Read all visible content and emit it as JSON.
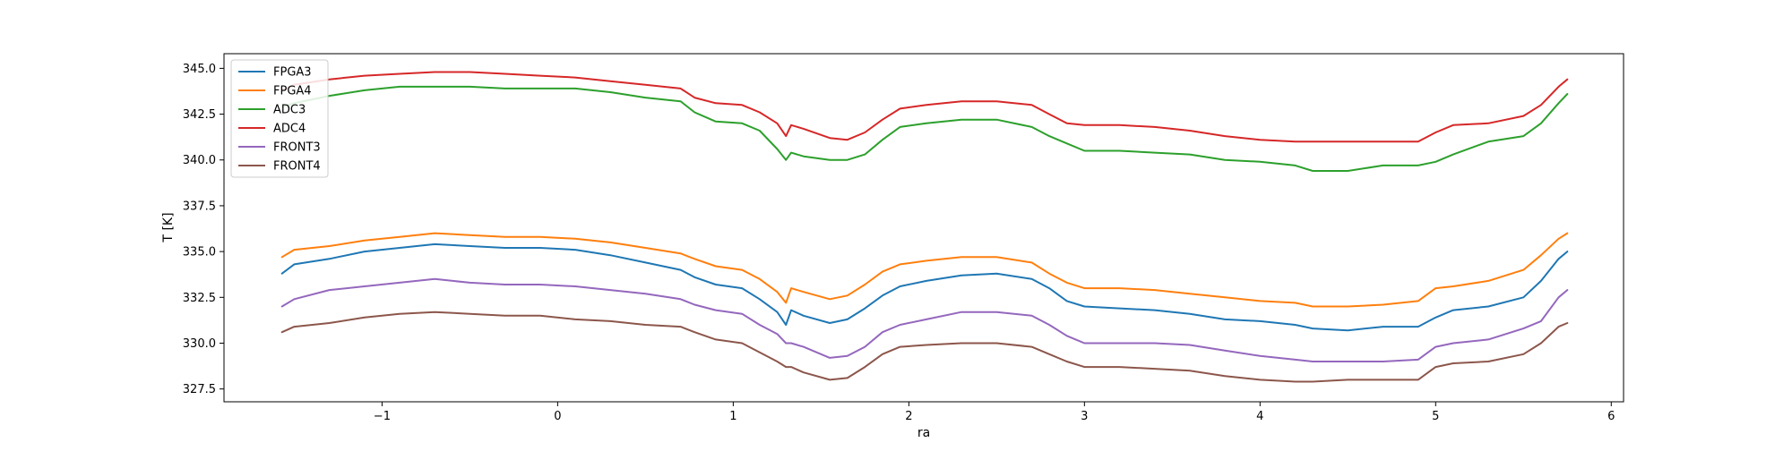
{
  "chart_data": {
    "type": "line",
    "title": "",
    "xlabel": "ra",
    "ylabel": "T [K]",
    "xlim": [
      -1.9,
      6.07
    ],
    "ylim": [
      326.8,
      345.8
    ],
    "xticks": [
      -1,
      0,
      1,
      2,
      3,
      4,
      5,
      6
    ],
    "xtick_labels": [
      "−1",
      "0",
      "1",
      "2",
      "3",
      "4",
      "5",
      "6"
    ],
    "yticks": [
      327.5,
      330.0,
      332.5,
      335.0,
      337.5,
      340.0,
      342.5,
      345.0
    ],
    "ytick_labels": [
      "327.5",
      "330.0",
      "332.5",
      "335.0",
      "337.5",
      "340.0",
      "342.5",
      "345.0"
    ],
    "grid": false,
    "legend_position": "top-left",
    "series": [
      {
        "name": "FPGA3",
        "color": "#1f77b4",
        "points": [
          [
            -1.57,
            333.8
          ],
          [
            -1.5,
            334.3
          ],
          [
            -1.3,
            334.6
          ],
          [
            -1.1,
            335.0
          ],
          [
            -0.9,
            335.2
          ],
          [
            -0.7,
            335.4
          ],
          [
            -0.5,
            335.3
          ],
          [
            -0.3,
            335.2
          ],
          [
            -0.1,
            335.2
          ],
          [
            0.1,
            335.1
          ],
          [
            0.3,
            334.8
          ],
          [
            0.5,
            334.4
          ],
          [
            0.7,
            334.0
          ],
          [
            0.78,
            333.6
          ],
          [
            0.9,
            333.2
          ],
          [
            1.05,
            333.0
          ],
          [
            1.15,
            332.4
          ],
          [
            1.25,
            331.7
          ],
          [
            1.3,
            331.0
          ],
          [
            1.33,
            331.8
          ],
          [
            1.4,
            331.5
          ],
          [
            1.55,
            331.1
          ],
          [
            1.65,
            331.3
          ],
          [
            1.75,
            331.9
          ],
          [
            1.85,
            332.6
          ],
          [
            1.95,
            333.1
          ],
          [
            2.1,
            333.4
          ],
          [
            2.3,
            333.7
          ],
          [
            2.5,
            333.8
          ],
          [
            2.7,
            333.5
          ],
          [
            2.8,
            333.0
          ],
          [
            2.9,
            332.3
          ],
          [
            3.0,
            332.0
          ],
          [
            3.2,
            331.9
          ],
          [
            3.4,
            331.8
          ],
          [
            3.6,
            331.6
          ],
          [
            3.8,
            331.3
          ],
          [
            4.0,
            331.2
          ],
          [
            4.2,
            331.0
          ],
          [
            4.3,
            330.8
          ],
          [
            4.5,
            330.7
          ],
          [
            4.7,
            330.9
          ],
          [
            4.9,
            330.9
          ],
          [
            5.0,
            331.4
          ],
          [
            5.1,
            331.8
          ],
          [
            5.3,
            332.0
          ],
          [
            5.5,
            332.5
          ],
          [
            5.6,
            333.4
          ],
          [
            5.7,
            334.6
          ],
          [
            5.75,
            335.0
          ]
        ]
      },
      {
        "name": "FPGA4",
        "color": "#ff7f0e",
        "points": [
          [
            -1.57,
            334.7
          ],
          [
            -1.5,
            335.1
          ],
          [
            -1.3,
            335.3
          ],
          [
            -1.1,
            335.6
          ],
          [
            -0.9,
            335.8
          ],
          [
            -0.7,
            336.0
          ],
          [
            -0.5,
            335.9
          ],
          [
            -0.3,
            335.8
          ],
          [
            -0.1,
            335.8
          ],
          [
            0.1,
            335.7
          ],
          [
            0.3,
            335.5
          ],
          [
            0.5,
            335.2
          ],
          [
            0.7,
            334.9
          ],
          [
            0.78,
            334.6
          ],
          [
            0.9,
            334.2
          ],
          [
            1.05,
            334.0
          ],
          [
            1.15,
            333.5
          ],
          [
            1.25,
            332.8
          ],
          [
            1.3,
            332.2
          ],
          [
            1.33,
            333.0
          ],
          [
            1.4,
            332.8
          ],
          [
            1.55,
            332.4
          ],
          [
            1.65,
            332.6
          ],
          [
            1.75,
            333.2
          ],
          [
            1.85,
            333.9
          ],
          [
            1.95,
            334.3
          ],
          [
            2.1,
            334.5
          ],
          [
            2.3,
            334.7
          ],
          [
            2.5,
            334.7
          ],
          [
            2.7,
            334.4
          ],
          [
            2.8,
            333.8
          ],
          [
            2.9,
            333.3
          ],
          [
            3.0,
            333.0
          ],
          [
            3.2,
            333.0
          ],
          [
            3.4,
            332.9
          ],
          [
            3.6,
            332.7
          ],
          [
            3.8,
            332.5
          ],
          [
            4.0,
            332.3
          ],
          [
            4.2,
            332.2
          ],
          [
            4.3,
            332.0
          ],
          [
            4.5,
            332.0
          ],
          [
            4.7,
            332.1
          ],
          [
            4.9,
            332.3
          ],
          [
            5.0,
            333.0
          ],
          [
            5.1,
            333.1
          ],
          [
            5.3,
            333.4
          ],
          [
            5.5,
            334.0
          ],
          [
            5.6,
            334.8
          ],
          [
            5.7,
            335.7
          ],
          [
            5.75,
            336.0
          ]
        ]
      },
      {
        "name": "ADC3",
        "color": "#2ca02c",
        "points": [
          [
            -1.57,
            342.9
          ],
          [
            -1.5,
            343.1
          ],
          [
            -1.3,
            343.5
          ],
          [
            -1.1,
            343.8
          ],
          [
            -0.9,
            344.0
          ],
          [
            -0.7,
            344.0
          ],
          [
            -0.5,
            344.0
          ],
          [
            -0.3,
            343.9
          ],
          [
            -0.1,
            343.9
          ],
          [
            0.1,
            343.9
          ],
          [
            0.3,
            343.7
          ],
          [
            0.5,
            343.4
          ],
          [
            0.7,
            343.2
          ],
          [
            0.78,
            342.6
          ],
          [
            0.9,
            342.1
          ],
          [
            1.05,
            342.0
          ],
          [
            1.15,
            341.6
          ],
          [
            1.25,
            340.6
          ],
          [
            1.3,
            340.0
          ],
          [
            1.33,
            340.4
          ],
          [
            1.4,
            340.2
          ],
          [
            1.55,
            340.0
          ],
          [
            1.65,
            340.0
          ],
          [
            1.75,
            340.3
          ],
          [
            1.85,
            341.1
          ],
          [
            1.95,
            341.8
          ],
          [
            2.1,
            342.0
          ],
          [
            2.3,
            342.2
          ],
          [
            2.5,
            342.2
          ],
          [
            2.7,
            341.8
          ],
          [
            2.8,
            341.3
          ],
          [
            2.9,
            340.9
          ],
          [
            3.0,
            340.5
          ],
          [
            3.2,
            340.5
          ],
          [
            3.4,
            340.4
          ],
          [
            3.6,
            340.3
          ],
          [
            3.8,
            340.0
          ],
          [
            4.0,
            339.9
          ],
          [
            4.2,
            339.7
          ],
          [
            4.3,
            339.4
          ],
          [
            4.5,
            339.4
          ],
          [
            4.7,
            339.7
          ],
          [
            4.9,
            339.7
          ],
          [
            5.0,
            339.9
          ],
          [
            5.1,
            340.3
          ],
          [
            5.3,
            341.0
          ],
          [
            5.5,
            341.3
          ],
          [
            5.6,
            342.0
          ],
          [
            5.7,
            343.1
          ],
          [
            5.75,
            343.6
          ]
        ]
      },
      {
        "name": "ADC4",
        "color": "#d62728",
        "points": [
          [
            -1.57,
            343.8
          ],
          [
            -1.5,
            344.1
          ],
          [
            -1.3,
            344.4
          ],
          [
            -1.1,
            344.6
          ],
          [
            -0.9,
            344.7
          ],
          [
            -0.7,
            344.8
          ],
          [
            -0.5,
            344.8
          ],
          [
            -0.3,
            344.7
          ],
          [
            -0.1,
            344.6
          ],
          [
            0.1,
            344.5
          ],
          [
            0.3,
            344.3
          ],
          [
            0.5,
            344.1
          ],
          [
            0.7,
            343.9
          ],
          [
            0.78,
            343.4
          ],
          [
            0.9,
            343.1
          ],
          [
            1.05,
            343.0
          ],
          [
            1.15,
            342.6
          ],
          [
            1.25,
            342.0
          ],
          [
            1.3,
            341.3
          ],
          [
            1.33,
            341.9
          ],
          [
            1.4,
            341.7
          ],
          [
            1.55,
            341.2
          ],
          [
            1.65,
            341.1
          ],
          [
            1.75,
            341.5
          ],
          [
            1.85,
            342.2
          ],
          [
            1.95,
            342.8
          ],
          [
            2.1,
            343.0
          ],
          [
            2.3,
            343.2
          ],
          [
            2.5,
            343.2
          ],
          [
            2.7,
            343.0
          ],
          [
            2.8,
            342.5
          ],
          [
            2.9,
            342.0
          ],
          [
            3.0,
            341.9
          ],
          [
            3.2,
            341.9
          ],
          [
            3.4,
            341.8
          ],
          [
            3.6,
            341.6
          ],
          [
            3.8,
            341.3
          ],
          [
            4.0,
            341.1
          ],
          [
            4.2,
            341.0
          ],
          [
            4.3,
            341.0
          ],
          [
            4.5,
            341.0
          ],
          [
            4.7,
            341.0
          ],
          [
            4.9,
            341.0
          ],
          [
            5.0,
            341.5
          ],
          [
            5.1,
            341.9
          ],
          [
            5.3,
            342.0
          ],
          [
            5.5,
            342.4
          ],
          [
            5.6,
            343.0
          ],
          [
            5.7,
            344.0
          ],
          [
            5.75,
            344.4
          ]
        ]
      },
      {
        "name": "FRONT3",
        "color": "#9467bd",
        "points": [
          [
            -1.57,
            332.0
          ],
          [
            -1.5,
            332.4
          ],
          [
            -1.3,
            332.9
          ],
          [
            -1.1,
            333.1
          ],
          [
            -0.9,
            333.3
          ],
          [
            -0.7,
            333.5
          ],
          [
            -0.5,
            333.3
          ],
          [
            -0.3,
            333.2
          ],
          [
            -0.1,
            333.2
          ],
          [
            0.1,
            333.1
          ],
          [
            0.3,
            332.9
          ],
          [
            0.5,
            332.7
          ],
          [
            0.7,
            332.4
          ],
          [
            0.78,
            332.1
          ],
          [
            0.9,
            331.8
          ],
          [
            1.05,
            331.6
          ],
          [
            1.15,
            331.0
          ],
          [
            1.25,
            330.5
          ],
          [
            1.3,
            330.0
          ],
          [
            1.33,
            330.0
          ],
          [
            1.4,
            329.8
          ],
          [
            1.55,
            329.2
          ],
          [
            1.65,
            329.3
          ],
          [
            1.75,
            329.8
          ],
          [
            1.85,
            330.6
          ],
          [
            1.95,
            331.0
          ],
          [
            2.1,
            331.3
          ],
          [
            2.3,
            331.7
          ],
          [
            2.5,
            331.7
          ],
          [
            2.7,
            331.5
          ],
          [
            2.8,
            331.0
          ],
          [
            2.9,
            330.4
          ],
          [
            3.0,
            330.0
          ],
          [
            3.2,
            330.0
          ],
          [
            3.4,
            330.0
          ],
          [
            3.6,
            329.9
          ],
          [
            3.8,
            329.6
          ],
          [
            4.0,
            329.3
          ],
          [
            4.2,
            329.1
          ],
          [
            4.3,
            329.0
          ],
          [
            4.5,
            329.0
          ],
          [
            4.7,
            329.0
          ],
          [
            4.9,
            329.1
          ],
          [
            5.0,
            329.8
          ],
          [
            5.1,
            330.0
          ],
          [
            5.3,
            330.2
          ],
          [
            5.5,
            330.8
          ],
          [
            5.6,
            331.2
          ],
          [
            5.7,
            332.5
          ],
          [
            5.75,
            332.9
          ]
        ]
      },
      {
        "name": "FRONT4",
        "color": "#8c564b",
        "points": [
          [
            -1.57,
            330.6
          ],
          [
            -1.5,
            330.9
          ],
          [
            -1.3,
            331.1
          ],
          [
            -1.1,
            331.4
          ],
          [
            -0.9,
            331.6
          ],
          [
            -0.7,
            331.7
          ],
          [
            -0.5,
            331.6
          ],
          [
            -0.3,
            331.5
          ],
          [
            -0.1,
            331.5
          ],
          [
            0.1,
            331.3
          ],
          [
            0.3,
            331.2
          ],
          [
            0.5,
            331.0
          ],
          [
            0.7,
            330.9
          ],
          [
            0.78,
            330.6
          ],
          [
            0.9,
            330.2
          ],
          [
            1.05,
            330.0
          ],
          [
            1.15,
            329.5
          ],
          [
            1.25,
            329.0
          ],
          [
            1.3,
            328.7
          ],
          [
            1.33,
            328.7
          ],
          [
            1.4,
            328.4
          ],
          [
            1.55,
            328.0
          ],
          [
            1.65,
            328.1
          ],
          [
            1.75,
            328.7
          ],
          [
            1.85,
            329.4
          ],
          [
            1.95,
            329.8
          ],
          [
            2.1,
            329.9
          ],
          [
            2.3,
            330.0
          ],
          [
            2.5,
            330.0
          ],
          [
            2.7,
            329.8
          ],
          [
            2.8,
            329.4
          ],
          [
            2.9,
            329.0
          ],
          [
            3.0,
            328.7
          ],
          [
            3.2,
            328.7
          ],
          [
            3.4,
            328.6
          ],
          [
            3.6,
            328.5
          ],
          [
            3.8,
            328.2
          ],
          [
            4.0,
            328.0
          ],
          [
            4.2,
            327.9
          ],
          [
            4.3,
            327.9
          ],
          [
            4.5,
            328.0
          ],
          [
            4.7,
            328.0
          ],
          [
            4.9,
            328.0
          ],
          [
            5.0,
            328.7
          ],
          [
            5.1,
            328.9
          ],
          [
            5.3,
            329.0
          ],
          [
            5.5,
            329.4
          ],
          [
            5.6,
            330.0
          ],
          [
            5.7,
            330.9
          ],
          [
            5.75,
            331.1
          ]
        ]
      }
    ]
  }
}
